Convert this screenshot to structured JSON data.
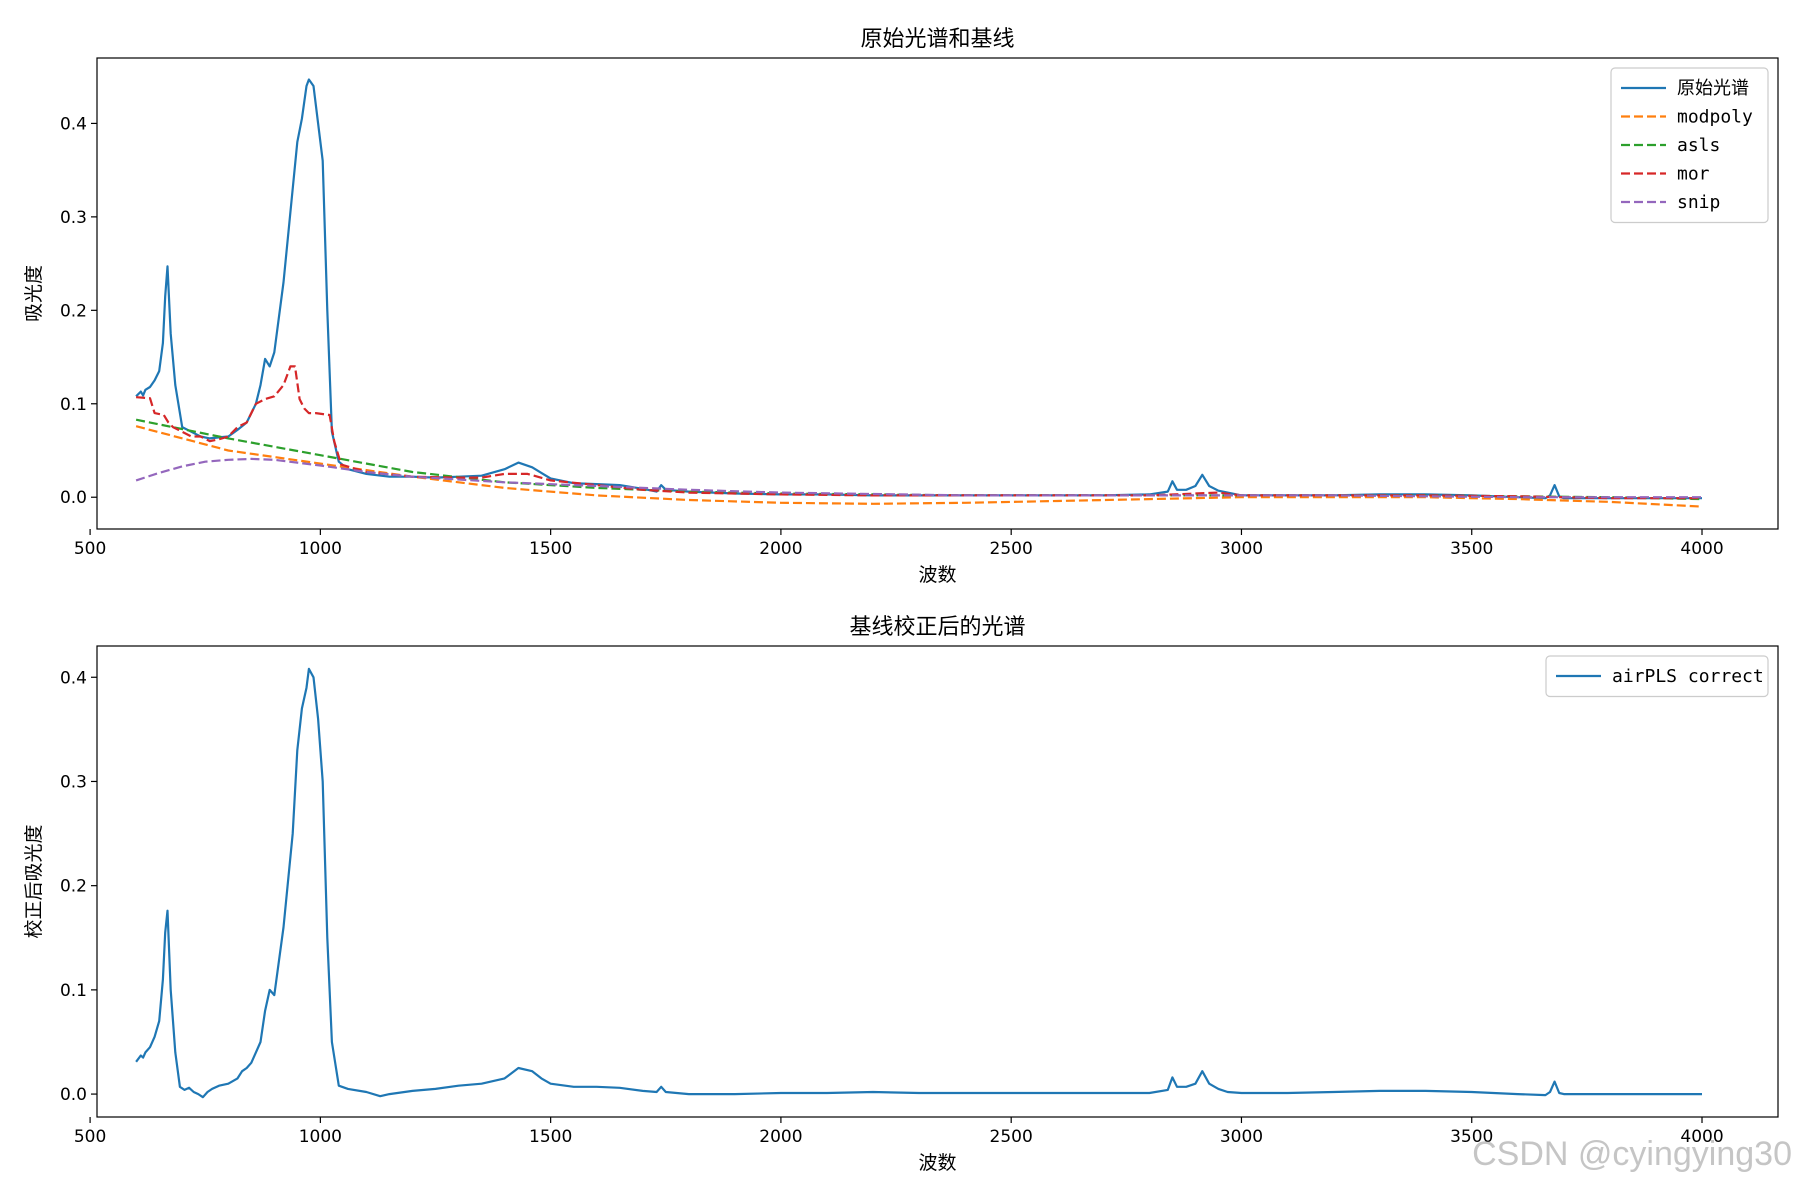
{
  "watermark": "CSDN @cyingying30",
  "chart_data": [
    {
      "type": "line",
      "title": "原始光谱和基线",
      "xlabel": "波数",
      "ylabel": "吸光度",
      "xlim": [
        515,
        4165
      ],
      "ylim": [
        -0.034,
        0.47
      ],
      "xticks": [
        500,
        1000,
        1500,
        2000,
        2500,
        3000,
        3500,
        4000
      ],
      "xtick_labels": [
        "500",
        "1000",
        "1500",
        "2000",
        "2500",
        "3000",
        "3500",
        "4000"
      ],
      "yticks": [
        0.0,
        0.1,
        0.2,
        0.3,
        0.4
      ],
      "ytick_labels": [
        "0.0",
        "0.1",
        "0.2",
        "0.3",
        "0.4"
      ],
      "legend": "top-right",
      "series": [
        {
          "name": "原始光谱",
          "color": "#1f77b4",
          "dash": "solid",
          "x": [
            600,
            610,
            615,
            620,
            630,
            640,
            650,
            658,
            663,
            668,
            675,
            685,
            700,
            720,
            740,
            760,
            780,
            800,
            820,
            840,
            860,
            870,
            880,
            890,
            900,
            920,
            940,
            950,
            960,
            970,
            975,
            985,
            995,
            1005,
            1015,
            1025,
            1040,
            1060,
            1100,
            1150,
            1200,
            1250,
            1300,
            1350,
            1400,
            1430,
            1460,
            1480,
            1500,
            1550,
            1600,
            1650,
            1700,
            1730,
            1740,
            1750,
            1800,
            1900,
            2000,
            2100,
            2200,
            2300,
            2400,
            2500,
            2600,
            2700,
            2800,
            2840,
            2850,
            2860,
            2880,
            2900,
            2915,
            2930,
            2950,
            2970,
            3000,
            3100,
            3200,
            3300,
            3400,
            3500,
            3600,
            3660,
            3670,
            3680,
            3690,
            3700,
            3800,
            3900,
            4000
          ],
          "y": [
            0.108,
            0.113,
            0.109,
            0.115,
            0.118,
            0.125,
            0.135,
            0.165,
            0.215,
            0.247,
            0.175,
            0.12,
            0.075,
            0.07,
            0.065,
            0.063,
            0.064,
            0.065,
            0.072,
            0.08,
            0.1,
            0.12,
            0.148,
            0.14,
            0.155,
            0.23,
            0.33,
            0.38,
            0.405,
            0.44,
            0.447,
            0.44,
            0.4,
            0.36,
            0.2,
            0.07,
            0.038,
            0.03,
            0.025,
            0.022,
            0.022,
            0.021,
            0.022,
            0.023,
            0.03,
            0.037,
            0.032,
            0.026,
            0.02,
            0.015,
            0.014,
            0.013,
            0.009,
            0.006,
            0.013,
            0.008,
            0.006,
            0.004,
            0.003,
            0.003,
            0.002,
            0.002,
            0.002,
            0.002,
            0.002,
            0.002,
            0.003,
            0.006,
            0.017,
            0.008,
            0.008,
            0.012,
            0.024,
            0.012,
            0.007,
            0.005,
            0.002,
            0.002,
            0.002,
            0.003,
            0.003,
            0.002,
            0.0,
            -0.001,
            0.002,
            0.013,
            0.001,
            -0.001,
            -0.001,
            -0.001,
            -0.001
          ]
        },
        {
          "name": "modpoly",
          "color": "#ff7f0e",
          "dash": "dashed",
          "x": [
            600,
            800,
            1000,
            1200,
            1400,
            1600,
            1800,
            2000,
            2200,
            2400,
            2600,
            2800,
            3000,
            3200,
            3400,
            3600,
            3800,
            4000
          ],
          "y": [
            0.076,
            0.05,
            0.036,
            0.022,
            0.01,
            0.002,
            -0.003,
            -0.006,
            -0.007,
            -0.006,
            -0.004,
            -0.002,
            0.0,
            0.0,
            0.0,
            -0.002,
            -0.005,
            -0.01
          ]
        },
        {
          "name": "asls",
          "color": "#2ca02c",
          "dash": "dashed",
          "x": [
            600,
            800,
            1000,
            1200,
            1400,
            1600,
            1800,
            2000,
            2200,
            2400,
            2600,
            2800,
            3000,
            3200,
            3400,
            3600,
            3800,
            4000
          ],
          "y": [
            0.083,
            0.063,
            0.045,
            0.027,
            0.016,
            0.01,
            0.006,
            0.004,
            0.003,
            0.002,
            0.002,
            0.002,
            0.002,
            0.002,
            0.002,
            0.001,
            0.0,
            -0.002
          ]
        },
        {
          "name": "mor",
          "color": "#d62728",
          "dash": "dashed",
          "x": [
            600,
            630,
            640,
            660,
            670,
            680,
            700,
            720,
            740,
            760,
            780,
            800,
            820,
            840,
            860,
            880,
            900,
            920,
            935,
            945,
            955,
            965,
            975,
            990,
            1020,
            1030,
            1045,
            1100,
            1200,
            1300,
            1350,
            1400,
            1450,
            1500,
            1600,
            1700,
            1800,
            2000,
            2200,
            2400,
            2600,
            2800,
            2900,
            2950,
            3000,
            3200,
            3400,
            3600,
            3800,
            4000
          ],
          "y": [
            0.107,
            0.106,
            0.09,
            0.088,
            0.08,
            0.075,
            0.07,
            0.065,
            0.065,
            0.06,
            0.062,
            0.065,
            0.075,
            0.08,
            0.1,
            0.105,
            0.108,
            0.12,
            0.14,
            0.14,
            0.105,
            0.095,
            0.09,
            0.09,
            0.088,
            0.06,
            0.035,
            0.027,
            0.022,
            0.021,
            0.021,
            0.025,
            0.025,
            0.018,
            0.013,
            0.008,
            0.005,
            0.003,
            0.002,
            0.002,
            0.002,
            0.002,
            0.004,
            0.005,
            0.002,
            0.002,
            0.002,
            0.001,
            -0.001,
            -0.001
          ]
        },
        {
          "name": "snip",
          "color": "#9467bd",
          "dash": "dashed",
          "x": [
            600,
            650,
            700,
            750,
            800,
            850,
            900,
            1000,
            1100,
            1200,
            1400,
            1600,
            1800,
            2000,
            2400,
            2800,
            3200,
            3600,
            4000
          ],
          "y": [
            0.018,
            0.026,
            0.033,
            0.038,
            0.04,
            0.041,
            0.04,
            0.034,
            0.027,
            0.022,
            0.016,
            0.012,
            0.008,
            0.005,
            0.002,
            0.002,
            0.002,
            0.0,
            0.0
          ]
        }
      ]
    },
    {
      "type": "line",
      "title": "基线校正后的光谱",
      "xlabel": "波数",
      "ylabel": "校正后吸光度",
      "xlim": [
        515,
        4165
      ],
      "ylim": [
        -0.022,
        0.43
      ],
      "xticks": [
        500,
        1000,
        1500,
        2000,
        2500,
        3000,
        3500,
        4000
      ],
      "xtick_labels": [
        "500",
        "1000",
        "1500",
        "2000",
        "2500",
        "3000",
        "3500",
        "4000"
      ],
      "yticks": [
        0.0,
        0.1,
        0.2,
        0.3,
        0.4
      ],
      "ytick_labels": [
        "0.0",
        "0.1",
        "0.2",
        "0.3",
        "0.4"
      ],
      "legend": "top-right",
      "series": [
        {
          "name": "airPLS correct",
          "color": "#1f77b4",
          "dash": "solid",
          "x": [
            600,
            610,
            615,
            620,
            630,
            640,
            650,
            658,
            663,
            668,
            675,
            685,
            695,
            705,
            715,
            725,
            735,
            745,
            755,
            765,
            780,
            800,
            820,
            830,
            840,
            850,
            860,
            870,
            880,
            890,
            900,
            920,
            940,
            950,
            960,
            970,
            975,
            985,
            995,
            1005,
            1015,
            1025,
            1040,
            1060,
            1100,
            1130,
            1150,
            1200,
            1250,
            1300,
            1350,
            1400,
            1430,
            1460,
            1480,
            1500,
            1550,
            1600,
            1650,
            1700,
            1730,
            1740,
            1750,
            1800,
            1900,
            2000,
            2100,
            2200,
            2300,
            2400,
            2500,
            2600,
            2700,
            2800,
            2840,
            2850,
            2860,
            2880,
            2900,
            2915,
            2930,
            2950,
            2970,
            3000,
            3100,
            3200,
            3300,
            3400,
            3500,
            3600,
            3660,
            3670,
            3680,
            3690,
            3700,
            3800,
            3900,
            4000
          ],
          "y": [
            0.031,
            0.037,
            0.035,
            0.04,
            0.045,
            0.055,
            0.07,
            0.11,
            0.155,
            0.176,
            0.1,
            0.04,
            0.007,
            0.004,
            0.006,
            0.002,
            0.0,
            -0.003,
            0.002,
            0.005,
            0.008,
            0.01,
            0.015,
            0.022,
            0.025,
            0.03,
            0.04,
            0.05,
            0.08,
            0.1,
            0.095,
            0.16,
            0.25,
            0.33,
            0.37,
            0.39,
            0.408,
            0.4,
            0.36,
            0.3,
            0.15,
            0.05,
            0.008,
            0.005,
            0.002,
            -0.002,
            0.0,
            0.003,
            0.005,
            0.008,
            0.01,
            0.015,
            0.025,
            0.022,
            0.015,
            0.01,
            0.007,
            0.007,
            0.006,
            0.003,
            0.002,
            0.007,
            0.002,
            0.0,
            0.0,
            0.001,
            0.001,
            0.002,
            0.001,
            0.001,
            0.001,
            0.001,
            0.001,
            0.001,
            0.004,
            0.016,
            0.007,
            0.007,
            0.01,
            0.022,
            0.01,
            0.005,
            0.002,
            0.001,
            0.001,
            0.002,
            0.003,
            0.003,
            0.002,
            0.0,
            -0.001,
            0.002,
            0.012,
            0.001,
            0.0,
            0.0,
            0.0,
            0.0
          ]
        }
      ]
    }
  ]
}
